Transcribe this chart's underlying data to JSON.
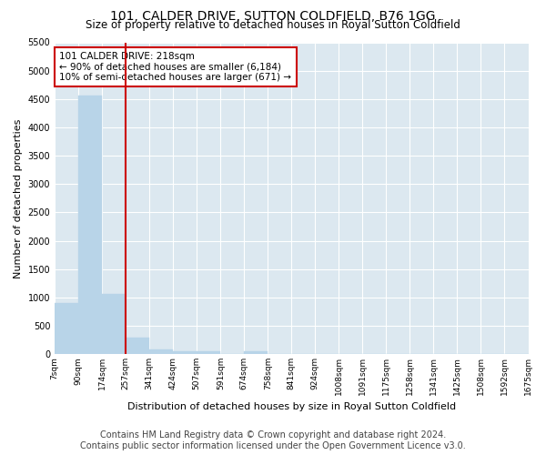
{
  "title": "101, CALDER DRIVE, SUTTON COLDFIELD, B76 1GG",
  "subtitle": "Size of property relative to detached houses in Royal Sutton Coldfield",
  "xlabel": "Distribution of detached houses by size in Royal Sutton Coldfield",
  "ylabel": "Number of detached properties",
  "bar_values": [
    900,
    4560,
    1060,
    300,
    80,
    60,
    50,
    0,
    60,
    0,
    0,
    0,
    0,
    0,
    0,
    0,
    0,
    0,
    0,
    0
  ],
  "bar_labels": [
    "7sqm",
    "90sqm",
    "174sqm",
    "257sqm",
    "341sqm",
    "424sqm",
    "507sqm",
    "591sqm",
    "674sqm",
    "758sqm",
    "841sqm",
    "924sqm",
    "1008sqm",
    "1091sqm",
    "1175sqm",
    "1258sqm",
    "1341sqm",
    "1425sqm",
    "1508sqm",
    "1592sqm",
    "1675sqm"
  ],
  "bar_color": "#b8d4e8",
  "bar_edgecolor": "#b8d4e8",
  "vline_x": 2.5,
  "vline_color": "#cc0000",
  "annotation_text": "101 CALDER DRIVE: 218sqm\n← 90% of detached houses are smaller (6,184)\n10% of semi-detached houses are larger (671) →",
  "annotation_box_color": "#ffffff",
  "annotation_box_edgecolor": "#cc0000",
  "ylim": [
    0,
    5500
  ],
  "yticks": [
    0,
    500,
    1000,
    1500,
    2000,
    2500,
    3000,
    3500,
    4000,
    4500,
    5000,
    5500
  ],
  "footer_line1": "Contains HM Land Registry data © Crown copyright and database right 2024.",
  "footer_line2": "Contains public sector information licensed under the Open Government Licence v3.0.",
  "background_color": "#ffffff",
  "plot_bg_color": "#dce8f0",
  "grid_color": "#ffffff",
  "title_fontsize": 10,
  "subtitle_fontsize": 8.5,
  "ylabel_fontsize": 8,
  "xlabel_fontsize": 8,
  "footer_fontsize": 7,
  "tick_fontsize": 7,
  "xtick_fontsize": 6.5,
  "annot_fontsize": 7.5
}
